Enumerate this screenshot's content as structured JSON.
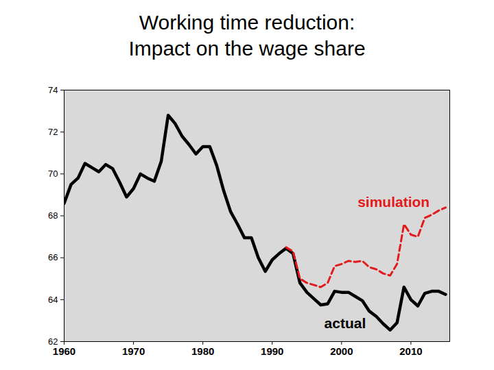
{
  "chart_data": {
    "type": "line",
    "title": "Working time reduction:\nImpact on the wage share",
    "x": [
      1960,
      1961,
      1962,
      1963,
      1964,
      1965,
      1966,
      1967,
      1968,
      1969,
      1970,
      1971,
      1972,
      1973,
      1974,
      1975,
      1976,
      1977,
      1978,
      1979,
      1980,
      1981,
      1982,
      1983,
      1984,
      1985,
      1986,
      1987,
      1988,
      1989,
      1990,
      1991,
      1992,
      1993,
      1994,
      1995,
      1996,
      1997,
      1998,
      1999,
      2000,
      2001,
      2002,
      2003,
      2004,
      2005,
      2006,
      2007,
      2008,
      2009,
      2010,
      2011,
      2012,
      2013,
      2014,
      2015
    ],
    "series": [
      {
        "name": "actual",
        "color": "#000000",
        "line_style": "solid",
        "values": [
          68.6,
          69.5,
          69.8,
          70.5,
          70.3,
          70.1,
          70.45,
          70.25,
          69.6,
          68.9,
          69.3,
          70.0,
          69.8,
          69.65,
          70.6,
          72.8,
          72.4,
          71.8,
          71.4,
          70.95,
          71.3,
          71.3,
          70.4,
          69.2,
          68.2,
          67.6,
          66.95,
          66.95,
          66.0,
          65.35,
          65.9,
          66.2,
          66.45,
          66.2,
          64.8,
          64.35,
          64.05,
          63.75,
          63.8,
          64.4,
          64.35,
          64.35,
          64.15,
          63.95,
          63.45,
          63.2,
          62.85,
          62.55,
          62.9,
          64.6,
          64.0,
          63.7,
          64.3,
          64.4,
          64.4,
          64.25
        ]
      },
      {
        "name": "simulation",
        "color": "#e31a1c",
        "line_style": "dashed",
        "values": [
          null,
          null,
          null,
          null,
          null,
          null,
          null,
          null,
          null,
          null,
          null,
          null,
          null,
          null,
          null,
          null,
          null,
          null,
          null,
          null,
          null,
          null,
          null,
          null,
          null,
          null,
          null,
          null,
          null,
          null,
          null,
          null,
          66.5,
          66.3,
          65.0,
          64.8,
          64.7,
          64.6,
          64.8,
          65.6,
          65.7,
          65.85,
          65.8,
          65.85,
          65.55,
          65.45,
          65.25,
          65.15,
          65.7,
          67.6,
          67.1,
          67.0,
          67.9,
          68.05,
          68.25,
          68.4
        ]
      }
    ],
    "annotations": [
      {
        "text": "simulation",
        "x": 2007.5,
        "y": 68.65,
        "color": "#e31a1c"
      },
      {
        "text": "actual",
        "x": 2000.5,
        "y": 62.85,
        "color": "#000000"
      }
    ],
    "xlim": [
      1960,
      2015.6
    ],
    "xticks": [
      1960,
      1970,
      1980,
      1990,
      2000,
      2010
    ],
    "ylim": [
      62,
      74
    ],
    "yticks": [
      62,
      64,
      66,
      68,
      70,
      72,
      74
    ],
    "grid": false
  }
}
